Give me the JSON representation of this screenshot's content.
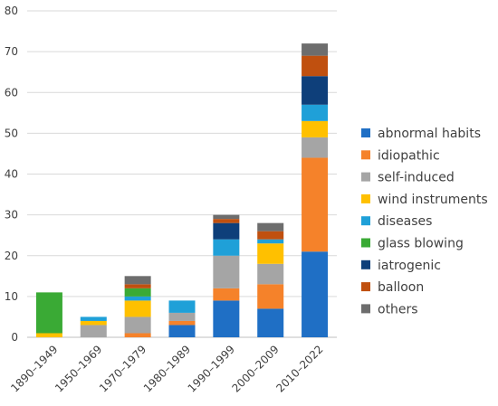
{
  "chart_data": {
    "type": "bar",
    "stacked": true,
    "categories": [
      "1890–1949",
      "1950–1969",
      "1970–1979",
      "1980–1989",
      "1990–1999",
      "2000–2009",
      "2010–2022"
    ],
    "ylim": [
      0,
      80
    ],
    "yticks": [
      0,
      10,
      20,
      30,
      40,
      50,
      60,
      70,
      80
    ],
    "grid": true,
    "legend_position": "right",
    "series": [
      {
        "name": "abnormal habits",
        "color": "#1f6fc5",
        "values": [
          0,
          0,
          0,
          3,
          9,
          7,
          21
        ]
      },
      {
        "name": "idiopathic",
        "color": "#f5822a",
        "values": [
          0,
          0,
          1,
          1,
          3,
          6,
          23
        ]
      },
      {
        "name": "self-induced",
        "color": "#a5a5a5",
        "values": [
          0,
          3,
          4,
          2,
          8,
          5,
          5
        ]
      },
      {
        "name": "wind instruments",
        "color": "#ffc000",
        "values": [
          1,
          1,
          4,
          0,
          0,
          5,
          4
        ]
      },
      {
        "name": "diseases",
        "color": "#1fa0d8",
        "values": [
          0,
          1,
          1,
          3,
          4,
          1,
          4
        ]
      },
      {
        "name": "glass blowing",
        "color": "#3aaa35",
        "values": [
          10,
          0,
          2,
          0,
          0,
          0,
          0
        ]
      },
      {
        "name": "iatrogenic",
        "color": "#0e3f7a",
        "values": [
          0,
          0,
          0,
          0,
          4,
          0,
          7
        ]
      },
      {
        "name": "balloon",
        "color": "#c0500f",
        "values": [
          0,
          0,
          1,
          0,
          1,
          2,
          5
        ]
      },
      {
        "name": "others",
        "color": "#6d6d6d",
        "values": [
          0,
          0,
          2,
          0,
          1,
          2,
          3
        ]
      }
    ]
  }
}
